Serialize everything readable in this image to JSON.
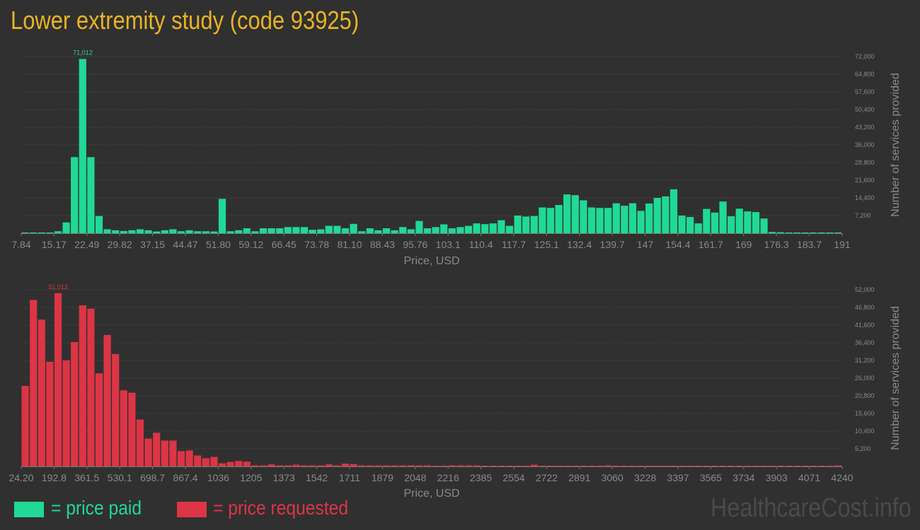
{
  "page_title": "Lower extremity study (code 93925)",
  "colors": {
    "title": "#e8b425",
    "paid": "#20d996",
    "requested": "#dc3545",
    "axis_text": "#8a8a8a",
    "grid": "#5a5a5a"
  },
  "legend": {
    "paid_label": "= price paid",
    "requested_label": "= price requested"
  },
  "watermark": "HealthcareCost.info",
  "chart_data": [
    {
      "type": "bar",
      "name": "price paid",
      "xlabel": "Price, USD",
      "ylabel": "Number of services provided",
      "ylim": [
        0,
        72000
      ],
      "grid": true,
      "y_ticks": [
        "7,200",
        "14,400",
        "21,600",
        "28,800",
        "36,000",
        "43,200",
        "50,400",
        "57,600",
        "64,800",
        "72,000"
      ],
      "x_ticks": [
        "7.84",
        "15.17",
        "22.49",
        "29.82",
        "37.15",
        "44.47",
        "51.80",
        "59.12",
        "66.45",
        "73.78",
        "81.10",
        "88.43",
        "95.76",
        "103.1",
        "110.4",
        "117.7",
        "125.1",
        "132.4",
        "139.7",
        "147",
        "154.4",
        "161.7",
        "169",
        "176.3",
        "183.7",
        "191"
      ],
      "peak_label": "71,012",
      "peak_index": 7,
      "values": [
        300,
        300,
        300,
        300,
        800,
        4400,
        31000,
        71012,
        31000,
        7000,
        1600,
        1200,
        900,
        1200,
        1600,
        1200,
        700,
        1200,
        1600,
        800,
        1200,
        800,
        800,
        700,
        14000,
        800,
        1200,
        2000,
        800,
        2000,
        2000,
        2000,
        2500,
        2500,
        2500,
        1400,
        1600,
        3000,
        3000,
        2000,
        3800,
        800,
        2000,
        1200,
        2000,
        1200,
        2500,
        1600,
        5000,
        2000,
        2500,
        3600,
        2000,
        2500,
        3000,
        4000,
        3700,
        4000,
        5300,
        3000,
        7200,
        6800,
        7000,
        10500,
        10300,
        11500,
        15800,
        15500,
        13400,
        10500,
        10300,
        10300,
        12200,
        11200,
        12200,
        9100,
        12100,
        14400,
        15000,
        17900,
        7200,
        6600,
        4000,
        9900,
        8400,
        12900,
        6900,
        10000,
        8900,
        8600,
        6000,
        500,
        400,
        300,
        300,
        300,
        300,
        300,
        300,
        300
      ]
    },
    {
      "type": "bar",
      "name": "price requested",
      "xlabel": "Price, USD",
      "ylabel": "Number of services provided",
      "ylim": [
        0,
        52000
      ],
      "grid": true,
      "y_ticks": [
        "5,200",
        "10,400",
        "15,600",
        "20,800",
        "26,000",
        "31,200",
        "36,400",
        "41,600",
        "46,800",
        "52,000"
      ],
      "x_ticks": [
        "24.20",
        "192.8",
        "361.5",
        "530.1",
        "698.7",
        "867.4",
        "1036",
        "1205",
        "1373",
        "1542",
        "1711",
        "1879",
        "2048",
        "2216",
        "2385",
        "2554",
        "2722",
        "2891",
        "3060",
        "3228",
        "3397",
        "3565",
        "3734",
        "3903",
        "4071",
        "4240"
      ],
      "peak_label": "51,012",
      "peak_index": 4,
      "values": [
        23700,
        49000,
        43200,
        30800,
        51012,
        31200,
        36600,
        47400,
        46400,
        27400,
        38700,
        33100,
        22400,
        21700,
        13800,
        8200,
        9900,
        7600,
        7600,
        4500,
        4700,
        3200,
        2400,
        2800,
        900,
        1300,
        1600,
        1400,
        300,
        300,
        600,
        300,
        300,
        500,
        300,
        300,
        300,
        600,
        300,
        800,
        700,
        300,
        300,
        300,
        300,
        300,
        300,
        300,
        300,
        300,
        200,
        200,
        300,
        300,
        300,
        300,
        200,
        200,
        200,
        200,
        200,
        200,
        500,
        200,
        200,
        200,
        200,
        200,
        200,
        200,
        200,
        300,
        200,
        200,
        200,
        200,
        200,
        200,
        200,
        200,
        200,
        200,
        200,
        200,
        200,
        200,
        200,
        200,
        200,
        200,
        200,
        200,
        200,
        200,
        200,
        200,
        200,
        200,
        200,
        300
      ]
    }
  ]
}
